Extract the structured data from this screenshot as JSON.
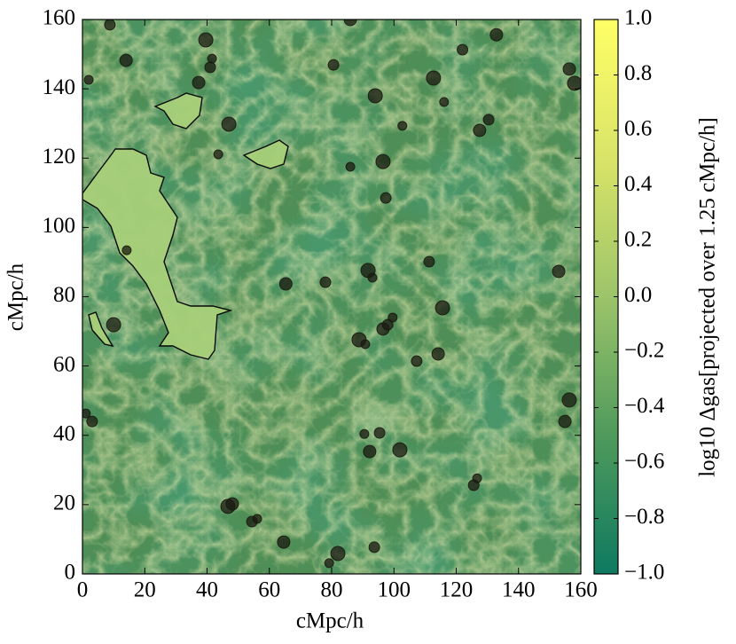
{
  "chart_data": {
    "type": "scatter",
    "x_label": "cMpc/h",
    "y_label": "cMpc/h",
    "colorbar_label": "log10 Δgas[projected over 1.25 cMpc/h]",
    "xlim": [
      0,
      160
    ],
    "ylim": [
      0,
      160
    ],
    "xticks": [
      0,
      20,
      40,
      60,
      80,
      100,
      120,
      140,
      160
    ],
    "yticks": [
      0,
      20,
      40,
      60,
      80,
      100,
      120,
      140,
      160
    ],
    "clim": [
      -1,
      1
    ],
    "cticks": [
      {
        "value": -1,
        "label": "−1.0"
      },
      {
        "value": -0.8,
        "label": "−0.8"
      },
      {
        "value": -0.6,
        "label": "−0.6"
      },
      {
        "value": -0.4,
        "label": "−0.4"
      },
      {
        "value": -0.2,
        "label": "−0.2"
      },
      {
        "value": 0,
        "label": "0.0"
      },
      {
        "value": 0.2,
        "label": "0.2"
      },
      {
        "value": 0.4,
        "label": "0.4"
      },
      {
        "value": 0.6,
        "label": "0.6"
      },
      {
        "value": 0.8,
        "label": "0.8"
      },
      {
        "value": 1,
        "label": "1.0"
      }
    ],
    "colormap": [
      "#0e7a60",
      "#4f9a5c",
      "#9cc46a",
      "#d9e468",
      "#ffff66"
    ],
    "color": "#1a1a10",
    "x": [
      2,
      8.8,
      14,
      39.6,
      41.6,
      41,
      37.3,
      47,
      43.6,
      80.6,
      86,
      94,
      102.7,
      122,
      132.9,
      112.7,
      116.1,
      130.4,
      127.5,
      96.5,
      86,
      97.4,
      156.3,
      158,
      14.2,
      78,
      65.3,
      91.7,
      93.1,
      111.3,
      152.9,
      115.6,
      99.6,
      98,
      96.5,
      88.8,
      90.8,
      107.3,
      114.2,
      10,
      1.1,
      3.1,
      154.9,
      156.3,
      90.5,
      95.4,
      92.2,
      101.9,
      126.7,
      125.6,
      48.1,
      46.7,
      56.1,
      54.4,
      64.6,
      82,
      79.2,
      93.7
    ],
    "y": [
      142.6,
      158.5,
      148.2,
      154.1,
      148.7,
      146.2,
      141.8,
      129.8,
      121.1,
      146.9,
      160,
      138,
      129.3,
      151.3,
      155.6,
      143.1,
      136.2,
      131.1,
      128,
      119,
      117.5,
      108.5,
      145.7,
      141.6,
      93.4,
      84.2,
      83.7,
      87.6,
      85.5,
      90.1,
      87.3,
      76.8,
      74,
      71.9,
      70.7,
      67.6,
      66.3,
      61.4,
      63.5,
      71.9,
      46.3,
      44,
      44,
      50.2,
      40.4,
      40.7,
      35.3,
      35.8,
      27.6,
      25.6,
      20.2,
      19.5,
      15.9,
      15.1,
      9.2,
      5.9,
      3.1,
      7.7
    ]
  }
}
